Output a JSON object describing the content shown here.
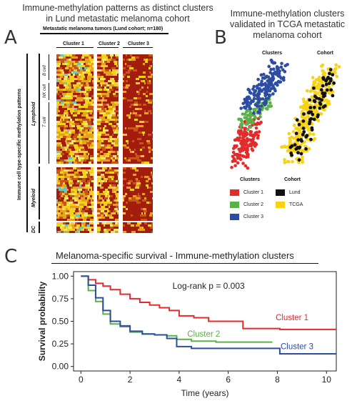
{
  "panels": {
    "a": "A",
    "b": "B",
    "c": "C"
  },
  "panel_a": {
    "title": "Immune-methylation patterns as distinct clusters in Lund metastatic melanoma cohort",
    "header": "Metastatic melanoma tumors (Lund cohort; n=180)",
    "clusters": [
      "Cluster 1",
      "Cluster 2",
      "Cluster 3"
    ],
    "y_axis_label": "Immune cell type-specific methylation patterns",
    "groups": [
      "Lymphoid",
      "Myeloid",
      "DC"
    ],
    "subgroups": [
      "B cell",
      "NK cell",
      "T cell"
    ],
    "heatmap_colors": [
      "#a31d0e",
      "#c8541a",
      "#e6a11f",
      "#f2d21a",
      "#efe86a",
      "#6fc6b8"
    ]
  },
  "panel_b": {
    "title": "Immune-methylation clusters validated in TCGA metastatic melanoma cohort",
    "plot_labels": [
      "Clusters",
      "Cohort"
    ],
    "legend_clusters_title": "Clusters",
    "legend_clusters": [
      {
        "label": "Cluster 1",
        "color": "#e22b2b"
      },
      {
        "label": "Cluster 2",
        "color": "#5bb04a"
      },
      {
        "label": "Cluster 3",
        "color": "#2d4da3"
      }
    ],
    "legend_cohort_title": "Cohort",
    "legend_cohort": [
      {
        "label": "Lund",
        "color": "#111111"
      },
      {
        "label": "TCGA",
        "color": "#f7d314"
      }
    ]
  },
  "chart_data": {
    "type": "line",
    "title": "Melanoma-specific survival - Immune-methylation clusters",
    "xlabel": "Time (years)",
    "ylabel": "Survival probability",
    "xlim": [
      -0.3,
      10.4
    ],
    "ylim": [
      -0.05,
      1.05
    ],
    "xticks": [
      0,
      2,
      4,
      6,
      8,
      10
    ],
    "yticks": [
      0.0,
      0.25,
      0.5,
      0.75,
      1.0
    ],
    "ytick_labels": [
      "0.00",
      "0.25",
      "0.50",
      "0.75",
      "1.00"
    ],
    "annotation": "Log-rank p = 0.003",
    "series": [
      {
        "name": "Cluster 1",
        "color": "#e22b2b",
        "x": [
          0,
          0.3,
          0.6,
          0.9,
          1.2,
          1.6,
          2.0,
          2.4,
          2.8,
          3.2,
          3.6,
          4.0,
          4.6,
          5.2,
          6.6,
          8.1,
          10.4
        ],
        "y": [
          1.0,
          0.96,
          0.92,
          0.89,
          0.85,
          0.8,
          0.75,
          0.71,
          0.68,
          0.65,
          0.62,
          0.56,
          0.54,
          0.5,
          0.42,
          0.41,
          0.41
        ]
      },
      {
        "name": "Cluster 2",
        "color": "#5bb04a",
        "x": [
          0,
          0.3,
          0.6,
          0.9,
          1.2,
          1.6,
          2.0,
          2.5,
          3.0,
          3.5,
          3.9,
          4.5,
          5.5,
          7.8
        ],
        "y": [
          1.0,
          0.84,
          0.72,
          0.58,
          0.47,
          0.44,
          0.38,
          0.36,
          0.35,
          0.34,
          0.3,
          0.28,
          0.27,
          0.27
        ]
      },
      {
        "name": "Cluster 3",
        "color": "#2d4da3",
        "x": [
          0,
          0.3,
          0.6,
          0.9,
          1.2,
          1.6,
          2.0,
          2.5,
          3.0,
          3.5,
          3.9,
          4.5,
          6.5,
          8.1,
          10.4
        ],
        "y": [
          1.0,
          0.9,
          0.76,
          0.62,
          0.5,
          0.45,
          0.39,
          0.36,
          0.35,
          0.31,
          0.22,
          0.2,
          0.2,
          0.14,
          0.14
        ]
      }
    ]
  }
}
